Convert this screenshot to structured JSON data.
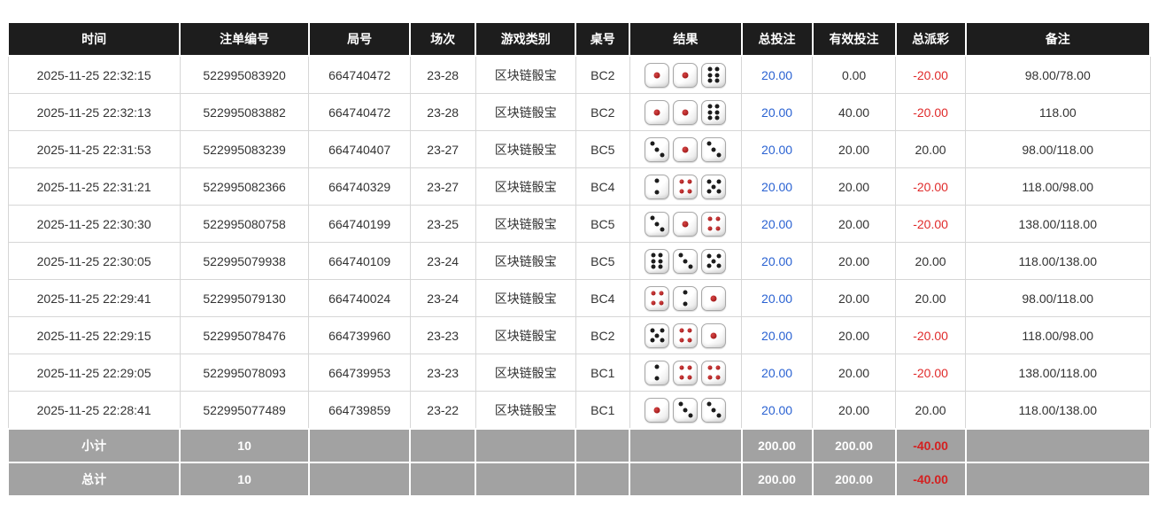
{
  "colors": {
    "header_bg": "#1d1d1d",
    "header_text": "#ffffff",
    "summary_bg": "#a2a2a2",
    "link_blue": "#2a62d2",
    "negative_red": "#e02b2b",
    "body_text": "#333333",
    "border_gray": "#d6d6d6",
    "die_pip_red": "#8f0b0b",
    "die_pip_black": "#1c1c1c"
  },
  "table": {
    "headers": {
      "time": "时间",
      "bet_id": "注单编号",
      "round_id": "局号",
      "session": "场次",
      "game_type": "游戏类别",
      "table_no": "桌号",
      "result": "结果",
      "total_bet": "总投注",
      "valid_bet": "有效投注",
      "payout": "总派彩",
      "remark": "备注"
    },
    "rows": [
      {
        "time": "2025-11-25 22:32:15",
        "bet_id": "522995083920",
        "round_id": "664740472",
        "session": "23-28",
        "game_type": "区块链骰宝",
        "table_no": "BC2",
        "dice": [
          1,
          1,
          6
        ],
        "total_bet": "20.00",
        "valid_bet": "0.00",
        "payout": "-20.00",
        "remark": "98.00/78.00"
      },
      {
        "time": "2025-11-25 22:32:13",
        "bet_id": "522995083882",
        "round_id": "664740472",
        "session": "23-28",
        "game_type": "区块链骰宝",
        "table_no": "BC2",
        "dice": [
          1,
          1,
          6
        ],
        "total_bet": "20.00",
        "valid_bet": "40.00",
        "payout": "-20.00",
        "remark": "118.00"
      },
      {
        "time": "2025-11-25 22:31:53",
        "bet_id": "522995083239",
        "round_id": "664740407",
        "session": "23-27",
        "game_type": "区块链骰宝",
        "table_no": "BC5",
        "dice": [
          3,
          1,
          3
        ],
        "total_bet": "20.00",
        "valid_bet": "20.00",
        "payout": "20.00",
        "remark": "98.00/118.00"
      },
      {
        "time": "2025-11-25 22:31:21",
        "bet_id": "522995082366",
        "round_id": "664740329",
        "session": "23-27",
        "game_type": "区块链骰宝",
        "table_no": "BC4",
        "dice": [
          2,
          4,
          5
        ],
        "total_bet": "20.00",
        "valid_bet": "20.00",
        "payout": "-20.00",
        "remark": "118.00/98.00"
      },
      {
        "time": "2025-11-25 22:30:30",
        "bet_id": "522995080758",
        "round_id": "664740199",
        "session": "23-25",
        "game_type": "区块链骰宝",
        "table_no": "BC5",
        "dice": [
          3,
          1,
          4
        ],
        "total_bet": "20.00",
        "valid_bet": "20.00",
        "payout": "-20.00",
        "remark": "138.00/118.00"
      },
      {
        "time": "2025-11-25 22:30:05",
        "bet_id": "522995079938",
        "round_id": "664740109",
        "session": "23-24",
        "game_type": "区块链骰宝",
        "table_no": "BC5",
        "dice": [
          6,
          3,
          5
        ],
        "total_bet": "20.00",
        "valid_bet": "20.00",
        "payout": "20.00",
        "remark": "118.00/138.00"
      },
      {
        "time": "2025-11-25 22:29:41",
        "bet_id": "522995079130",
        "round_id": "664740024",
        "session": "23-24",
        "game_type": "区块链骰宝",
        "table_no": "BC4",
        "dice": [
          4,
          2,
          1
        ],
        "total_bet": "20.00",
        "valid_bet": "20.00",
        "payout": "20.00",
        "remark": "98.00/118.00"
      },
      {
        "time": "2025-11-25 22:29:15",
        "bet_id": "522995078476",
        "round_id": "664739960",
        "session": "23-23",
        "game_type": "区块链骰宝",
        "table_no": "BC2",
        "dice": [
          5,
          4,
          1
        ],
        "total_bet": "20.00",
        "valid_bet": "20.00",
        "payout": "-20.00",
        "remark": "118.00/98.00"
      },
      {
        "time": "2025-11-25 22:29:05",
        "bet_id": "522995078093",
        "round_id": "664739953",
        "session": "23-23",
        "game_type": "区块链骰宝",
        "table_no": "BC1",
        "dice": [
          2,
          4,
          4
        ],
        "total_bet": "20.00",
        "valid_bet": "20.00",
        "payout": "-20.00",
        "remark": "138.00/118.00"
      },
      {
        "time": "2025-11-25 22:28:41",
        "bet_id": "522995077489",
        "round_id": "664739859",
        "session": "23-22",
        "game_type": "区块链骰宝",
        "table_no": "BC1",
        "dice": [
          1,
          3,
          3
        ],
        "total_bet": "20.00",
        "valid_bet": "20.00",
        "payout": "20.00",
        "remark": "118.00/138.00"
      }
    ],
    "summary_rows": [
      {
        "label": "小计",
        "count": "10",
        "total_bet": "200.00",
        "valid_bet": "200.00",
        "payout": "-40.00",
        "remark": ""
      },
      {
        "label": "总计",
        "count": "10",
        "total_bet": "200.00",
        "valid_bet": "200.00",
        "payout": "-40.00",
        "remark": ""
      }
    ]
  }
}
